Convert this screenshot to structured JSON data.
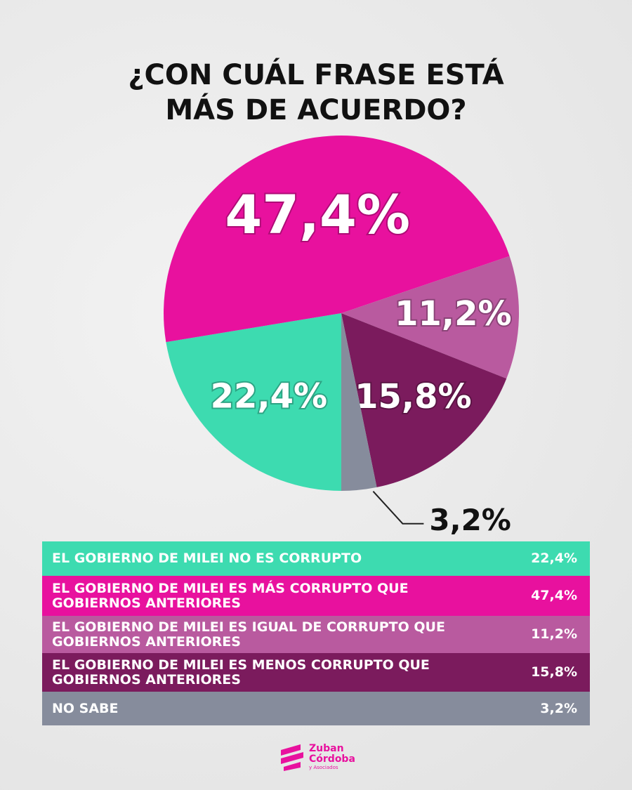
{
  "chart_data": {
    "type": "pie",
    "title": "¿CON CUÁL FRASE ESTÁ MÁS DE ACUERDO?",
    "categories": [
      "EL GOBIERNO DE MILEI NO ES CORRUPTO",
      "EL GOBIERNO DE MILEI ES MÁS CORRUPTO QUE GOBIERNOS ANTERIORES",
      "EL GOBIERNO DE MILEI ES IGUAL DE CORRUPTO QUE GOBIERNOS ANTERIORES",
      "EL GOBIERNO DE MILEI ES MENOS CORRUPTO QUE GOBIERNOS ANTERIORES",
      "NO SABE"
    ],
    "values": [
      22.4,
      47.4,
      11.2,
      15.8,
      3.2
    ],
    "value_labels": [
      "22,4%",
      "47,4%",
      "11,2%",
      "15,8%",
      "3,2%"
    ],
    "colors": [
      "#3ddbb0",
      "#e8119e",
      "#b95a9f",
      "#7b1b5d",
      "#868c9c"
    ]
  },
  "logo": {
    "name1": "Zuban",
    "name2": "Córdoba",
    "tagline": "y Asociados"
  }
}
